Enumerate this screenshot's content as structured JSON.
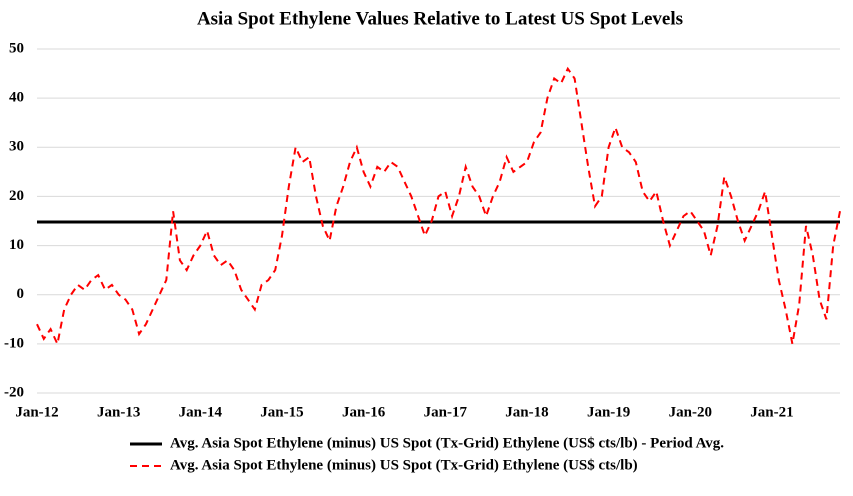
{
  "chart_data": {
    "type": "line",
    "title": "Asia Spot Ethylene Values Relative to Latest US Spot Levels",
    "categories": [
      "Jan-12",
      null,
      null,
      null,
      null,
      null,
      null,
      null,
      null,
      null,
      null,
      null,
      "Jan-13",
      null,
      null,
      null,
      null,
      null,
      null,
      null,
      null,
      null,
      null,
      null,
      "Jan-14",
      null,
      null,
      null,
      null,
      null,
      null,
      null,
      null,
      null,
      null,
      null,
      "Jan-15",
      null,
      null,
      null,
      null,
      null,
      null,
      null,
      null,
      null,
      null,
      null,
      "Jan-16",
      null,
      null,
      null,
      null,
      null,
      null,
      null,
      null,
      null,
      null,
      null,
      "Jan-17",
      null,
      null,
      null,
      null,
      null,
      null,
      null,
      null,
      null,
      null,
      null,
      "Jan-18",
      null,
      null,
      null,
      null,
      null,
      null,
      null,
      null,
      null,
      null,
      null,
      "Jan-19",
      null,
      null,
      null,
      null,
      null,
      null,
      null,
      null,
      null,
      null,
      null,
      "Jan-20",
      null,
      null,
      null,
      null,
      null,
      null,
      null,
      null,
      null,
      null,
      null,
      "Jan-21",
      null,
      null,
      null,
      null,
      null,
      null,
      null,
      null,
      null,
      null
    ],
    "series": [
      {
        "name": "Avg. Asia Spot Ethylene (minus) US Spot (Tx-Grid) Ethylene (US$ cts/lb) - Period Avg.",
        "color": "#000000",
        "dash": false,
        "values": [
          14.8,
          14.8,
          14.8,
          14.8,
          14.8,
          14.8,
          14.8,
          14.8,
          14.8,
          14.8,
          14.8,
          14.8,
          14.8,
          14.8,
          14.8,
          14.8,
          14.8,
          14.8,
          14.8,
          14.8,
          14.8,
          14.8,
          14.8,
          14.8,
          14.8,
          14.8,
          14.8,
          14.8,
          14.8,
          14.8,
          14.8,
          14.8,
          14.8,
          14.8,
          14.8,
          14.8,
          14.8,
          14.8,
          14.8,
          14.8,
          14.8,
          14.8,
          14.8,
          14.8,
          14.8,
          14.8,
          14.8,
          14.8,
          14.8,
          14.8,
          14.8,
          14.8,
          14.8,
          14.8,
          14.8,
          14.8,
          14.8,
          14.8,
          14.8,
          14.8,
          14.8,
          14.8,
          14.8,
          14.8,
          14.8,
          14.8,
          14.8,
          14.8,
          14.8,
          14.8,
          14.8,
          14.8,
          14.8,
          14.8,
          14.8,
          14.8,
          14.8,
          14.8,
          14.8,
          14.8,
          14.8,
          14.8,
          14.8,
          14.8,
          14.8,
          14.8,
          14.8,
          14.8,
          14.8,
          14.8,
          14.8,
          14.8,
          14.8,
          14.8,
          14.8,
          14.8,
          14.8,
          14.8,
          14.8,
          14.8,
          14.8,
          14.8,
          14.8,
          14.8,
          14.8,
          14.8,
          14.8,
          14.8,
          14.8,
          14.8,
          14.8,
          14.8,
          14.8,
          14.8,
          14.8,
          14.8,
          14.8,
          14.8,
          14.8
        ]
      },
      {
        "name": "Avg. Asia Spot Ethylene (minus) US Spot (Tx-Grid) Ethylene (US$ cts/lb)",
        "color": "#ff0000",
        "dash": true,
        "values": [
          -6,
          -9,
          -7,
          -10,
          -3,
          0,
          2,
          1,
          3,
          4,
          1,
          2,
          0,
          -1,
          -3,
          -8,
          -6,
          -3,
          0,
          3,
          17,
          7,
          5,
          8,
          10,
          13,
          8,
          6,
          7,
          5,
          1,
          -1,
          -3,
          2,
          3,
          5,
          12,
          22,
          30,
          27,
          28,
          20,
          14,
          11,
          18,
          22,
          27,
          30,
          25,
          22,
          26,
          25,
          27,
          26,
          23,
          20,
          16,
          12,
          15,
          20,
          21,
          16,
          20,
          26,
          22,
          20,
          16,
          20,
          23,
          28,
          25,
          26,
          27,
          31,
          33,
          40,
          44,
          43,
          46,
          44,
          35,
          26,
          18,
          20,
          30,
          34,
          30,
          29,
          27,
          21,
          19,
          21,
          15,
          10,
          13,
          16,
          17,
          15,
          13,
          8,
          14,
          24,
          20,
          15,
          11,
          14,
          17,
          21,
          12,
          3,
          -3,
          -10,
          -2,
          14,
          8,
          -1,
          -5,
          10,
          17
        ]
      }
    ],
    "ylim": [
      -20,
      50
    ],
    "yticks": [
      -20,
      -10,
      0,
      10,
      20,
      30,
      40,
      50
    ],
    "grid": true
  }
}
